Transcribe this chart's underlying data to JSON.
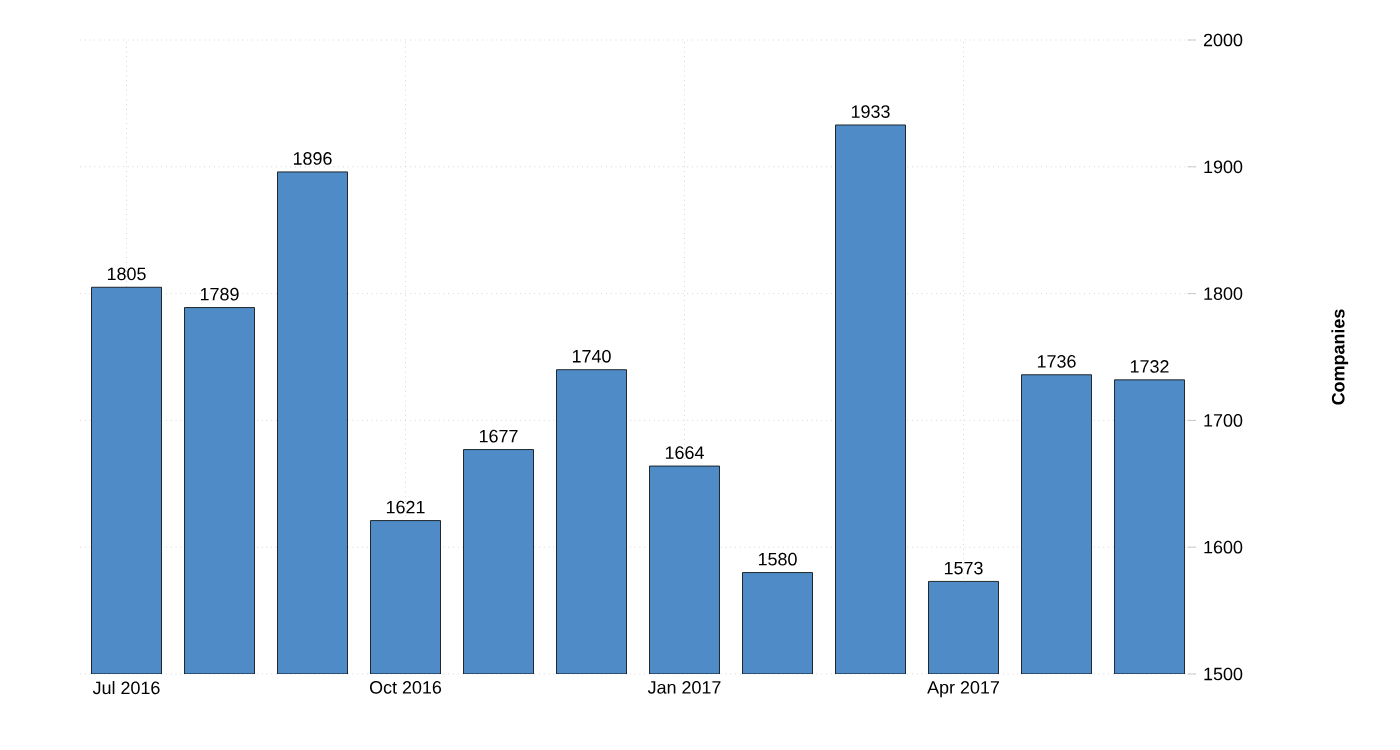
{
  "chart_data": {
    "type": "bar",
    "ylabel": "Companies",
    "categories": [
      "Jul 2016",
      null,
      null,
      "Oct 2016",
      null,
      null,
      "Jan 2017",
      null,
      null,
      "Apr 2017",
      null,
      null
    ],
    "values": [
      1805,
      1789,
      1896,
      1621,
      1677,
      1740,
      1664,
      1580,
      1933,
      1573,
      1736,
      1732
    ],
    "color": "#4f8bc6",
    "ylim": [
      1500,
      2000
    ],
    "yticks": [
      1500,
      1600,
      1700,
      1800,
      1900,
      2000
    ],
    "grid": true,
    "data_labels": true
  }
}
